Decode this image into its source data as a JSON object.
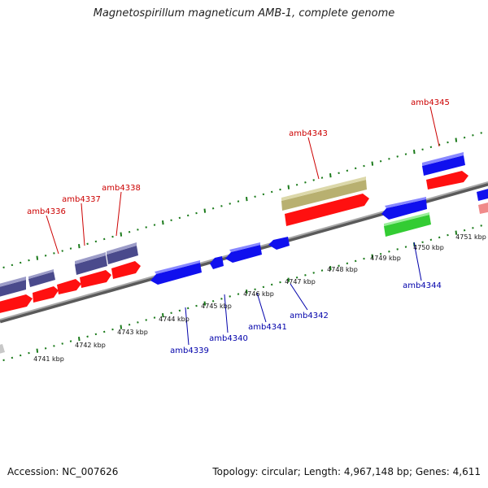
{
  "title": "Magnetospirillum magneticum AMB-1, complete genome",
  "footer": {
    "accession": "Accession: NC_007626",
    "summary": "Topology: circular; Length: 4,967,148 bp; Genes: 4,611"
  },
  "tick_labels": [
    "4741 kbp",
    "4742 kbp",
    "4743 kbp",
    "4744 kbp",
    "4745 kbp",
    "4746 kbp",
    "4747 kbp",
    "4748 kbp",
    "4749 kbp",
    "4750 kbp",
    "4751 kbp"
  ],
  "forward_labels": [
    "amb4336",
    "amb4337",
    "amb4338",
    "amb4343",
    "amb4345"
  ],
  "reverse_labels": [
    "amb4339",
    "amb4340",
    "amb4341",
    "amb4342",
    "amb4344"
  ],
  "colors": {
    "backbone": "#8a8a8a",
    "tick": "#1a7a1a",
    "forward_label": "#cc0000",
    "reverse_label": "#0000aa",
    "gene_red": "#ff1010",
    "gene_blue": "#1010ee",
    "gene_purple": "#4a4a8c",
    "gene_olive": "#b8b070",
    "gene_green": "#33cc33",
    "gene_pink": "#f08a8a",
    "gene_gray": "#c8c8c8"
  }
}
